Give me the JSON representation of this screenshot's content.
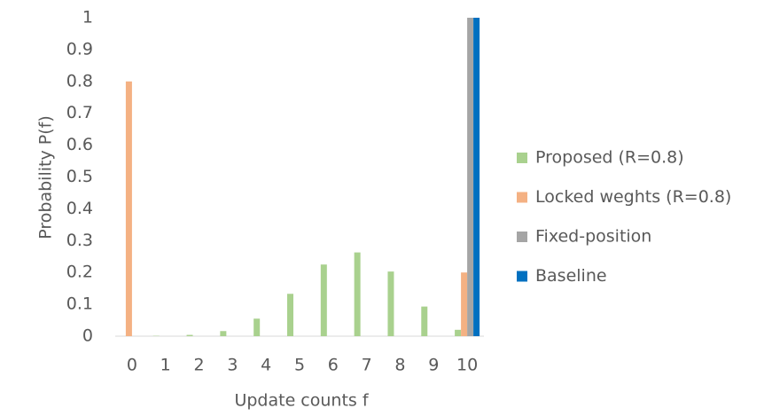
{
  "chart_data": {
    "type": "bar",
    "x_label": "Update counts f",
    "y_label": "Probability P(f)",
    "categories": [
      "0",
      "1",
      "2",
      "3",
      "4",
      "5",
      "6",
      "7",
      "8",
      "9",
      "10"
    ],
    "series": [
      {
        "name": "Proposed (R=0.8)",
        "color": "#a9d18e",
        "values": [
          0,
          0.001,
          0.004,
          0.016,
          0.055,
          0.133,
          0.225,
          0.263,
          0.203,
          0.093,
          0.02
        ]
      },
      {
        "name": "Locked weghts (R=0.8)",
        "color": "#f4b183",
        "values": [
          0.8,
          0,
          0,
          0,
          0,
          0,
          0,
          0,
          0,
          0,
          0.2
        ]
      },
      {
        "name": "Fixed-position",
        "color": "#a5a5a5",
        "values": [
          0,
          0,
          0,
          0,
          0,
          0,
          0,
          0,
          0,
          0,
          1
        ]
      },
      {
        "name": "Baseline",
        "color": "#0070c0",
        "values": [
          0,
          0,
          0,
          0,
          0,
          0,
          0,
          0,
          0,
          0,
          1
        ]
      }
    ],
    "ylim": [
      0,
      1
    ],
    "yticks": [
      0,
      0.1,
      0.2,
      0.3,
      0.4,
      0.5,
      0.6,
      0.7,
      0.8,
      0.9,
      1
    ],
    "grid": false,
    "legend": "right"
  }
}
